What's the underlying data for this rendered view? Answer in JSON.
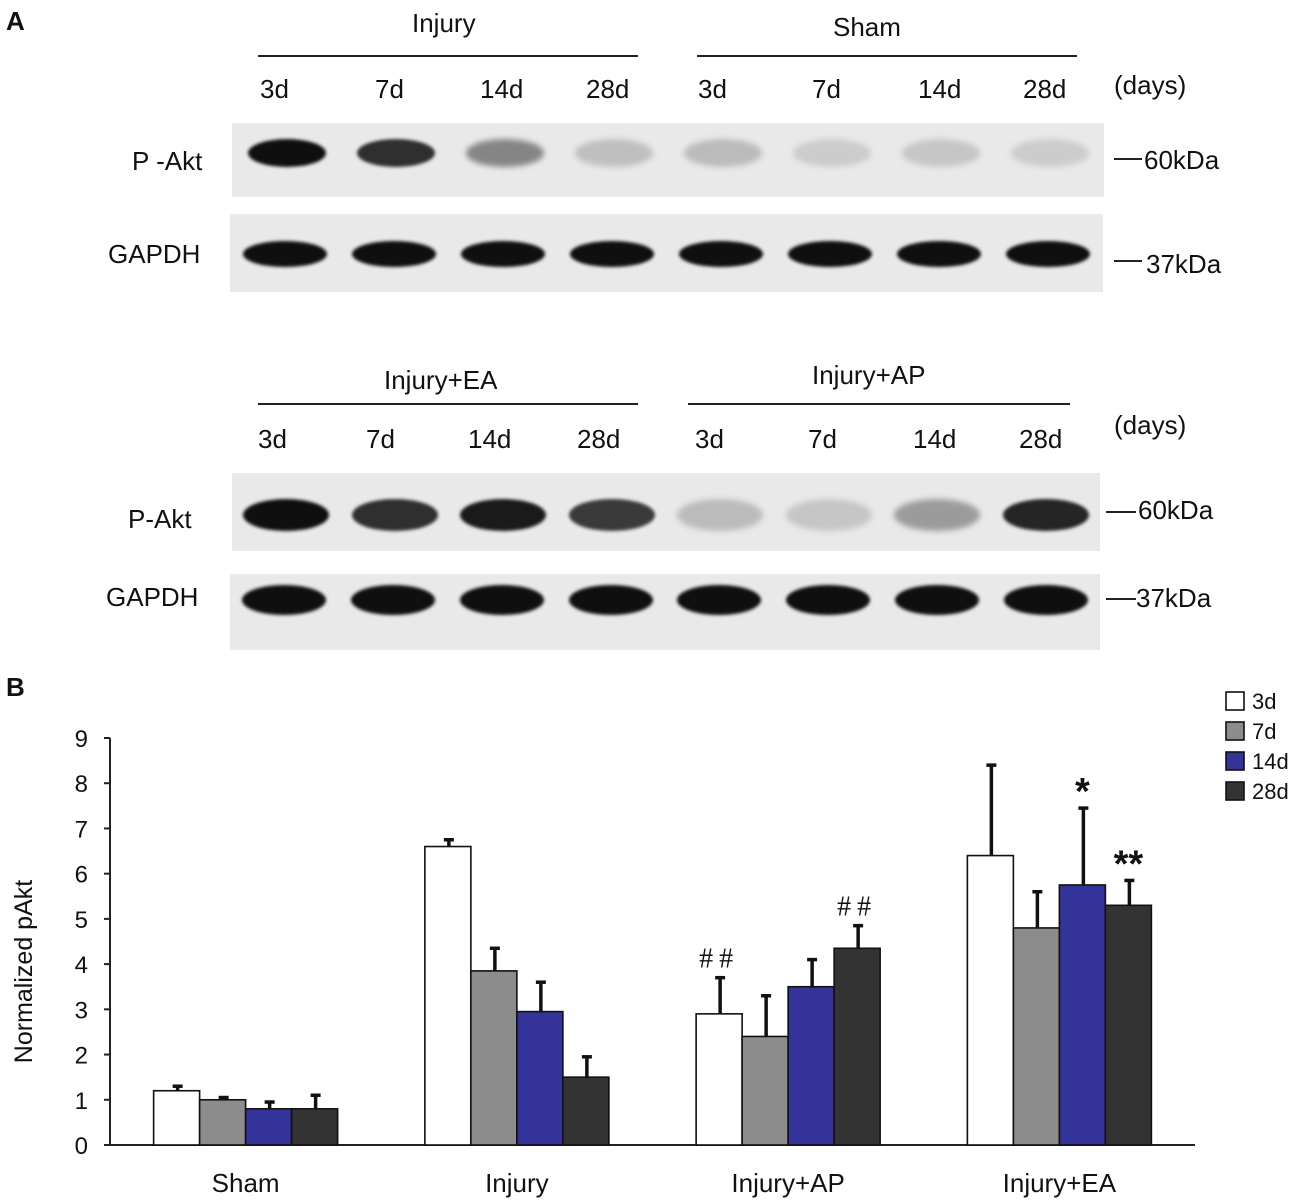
{
  "panel_a": {
    "letter": "A",
    "top_group_left": "Injury",
    "top_group_right": "Sham",
    "bottom_group_left": "Injury+EA",
    "bottom_group_right": "Injury+AP",
    "days_top": [
      "3d",
      "7d",
      "14d",
      "28d",
      "3d",
      "7d",
      "14d",
      "28d"
    ],
    "days_bottom": [
      "3d",
      "7d",
      "14d",
      "28d",
      "3d",
      "7d",
      "14d",
      "28d"
    ],
    "days_unit": "(days)",
    "row_pakt_top": "P -Akt",
    "row_gapdh_top": "GAPDH",
    "row_pakt_bottom": "P-Akt",
    "row_gapdh_bottom": "GAPDH",
    "kda_60": "60kDa",
    "kda_37": "37kDa",
    "band_intensity": {
      "pakt_top": [
        1.0,
        0.85,
        0.45,
        0.18,
        0.2,
        0.12,
        0.15,
        0.12
      ],
      "gapdh_top": [
        1,
        1,
        1,
        1,
        1,
        1,
        1,
        1
      ],
      "pakt_bottom": [
        1.0,
        0.85,
        0.95,
        0.8,
        0.2,
        0.15,
        0.35,
        0.9
      ],
      "gapdh_bottom": [
        1,
        1,
        1,
        1,
        1,
        1,
        1,
        1
      ]
    }
  },
  "chart_data": {
    "type": "bar",
    "panel_letter": "B",
    "categories": [
      "Sham",
      "Injury",
      "Injury+AP",
      "Injury+EA"
    ],
    "series": [
      {
        "name": "3d",
        "color": "#ffffff",
        "values": [
          1.2,
          6.6,
          2.9,
          6.4
        ],
        "errors": [
          0.1,
          0.15,
          0.8,
          2.0
        ]
      },
      {
        "name": "7d",
        "color": "#8c8c8c",
        "values": [
          1.0,
          3.85,
          2.4,
          4.8
        ],
        "errors": [
          0.05,
          0.5,
          0.9,
          0.8
        ]
      },
      {
        "name": "14d",
        "color": "#333399",
        "values": [
          0.8,
          2.95,
          3.5,
          5.75
        ],
        "errors": [
          0.15,
          0.65,
          0.6,
          1.7
        ]
      },
      {
        "name": "28d",
        "color": "#333333",
        "values": [
          0.8,
          1.5,
          4.35,
          5.3
        ],
        "errors": [
          0.3,
          0.45,
          0.5,
          0.55
        ]
      }
    ],
    "annotations": [
      {
        "category": "Injury+AP",
        "series": "3d",
        "text": "##"
      },
      {
        "category": "Injury+AP",
        "series": "28d",
        "text": "##"
      },
      {
        "category": "Injury+EA",
        "series": "14d",
        "text": "*"
      },
      {
        "category": "Injury+EA",
        "series": "28d",
        "text": "**"
      }
    ],
    "ylabel": "Normalized pAkt",
    "xlabel": "",
    "ylim": [
      0,
      9
    ],
    "yticks": [
      "0",
      "1",
      "2",
      "3",
      "4",
      "5",
      "6",
      "7",
      "8",
      "9"
    ],
    "legend_position": "top-right",
    "grid": false
  }
}
